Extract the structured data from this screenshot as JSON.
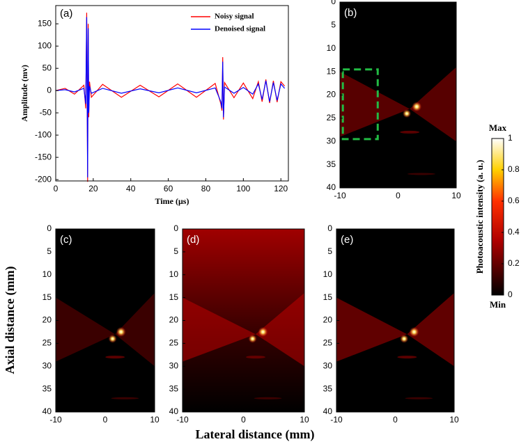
{
  "axial_label": "Axial distance (mm)",
  "lateral_label": "Lateral distance (mm)",
  "chart_data": [
    {
      "type": "line",
      "panel_label": "(a)",
      "xlabel": "Time (μs)",
      "ylabel": "Amplitude (mv)",
      "xlim": [
        0,
        124
      ],
      "xticks": [
        0,
        20,
        40,
        60,
        80,
        100,
        120
      ],
      "ylim": [
        -203,
        191
      ],
      "yticks": [
        -200,
        -150,
        -100,
        -50,
        0,
        50,
        100,
        150
      ],
      "legend": "top-right",
      "x": [
        0,
        5,
        10,
        15,
        16,
        16.5,
        17,
        17.3,
        17.6,
        18,
        19,
        25,
        35,
        45,
        55,
        65,
        75,
        85,
        88,
        88.6,
        89,
        89.4,
        90,
        95,
        100,
        105,
        108,
        110,
        112,
        114,
        116,
        118,
        120,
        122
      ],
      "series": [
        {
          "name": "Noisy signal",
          "color": "#ff0000",
          "values": [
            0,
            5,
            -8,
            12,
            -40,
            175,
            -205,
            150,
            -60,
            20,
            -15,
            14,
            -15,
            12,
            -14,
            15,
            -15,
            16,
            -30,
            -45,
            75,
            -65,
            18,
            -16,
            17,
            -18,
            20,
            -25,
            25,
            -28,
            22,
            -26,
            20,
            10
          ]
        },
        {
          "name": "Denoised signal",
          "color": "#0000ff",
          "values": [
            0,
            2,
            -3,
            5,
            -30,
            165,
            -195,
            140,
            -50,
            10,
            -6,
            5,
            -6,
            4,
            -5,
            6,
            -5,
            6,
            -25,
            -40,
            65,
            -60,
            8,
            -6,
            7,
            -8,
            15,
            -20,
            22,
            -25,
            18,
            -22,
            15,
            5
          ]
        }
      ]
    },
    {
      "type": "heatmap",
      "panel_label": "(b)",
      "xlim": [
        -10,
        10
      ],
      "xticks": [
        -10,
        0,
        10
      ],
      "ylim": [
        40,
        0
      ],
      "yticks": [
        0,
        5,
        10,
        15,
        20,
        25,
        30,
        35,
        40
      ]
    },
    {
      "type": "heatmap",
      "panel_label": "(c)",
      "xlim": [
        -10,
        10
      ],
      "xticks": [
        -10,
        0,
        10
      ],
      "ylim": [
        40,
        0
      ],
      "yticks": [
        0,
        5,
        10,
        15,
        20,
        25,
        30,
        35,
        40
      ]
    },
    {
      "type": "heatmap",
      "panel_label": "(d)",
      "xlim": [
        -10,
        10
      ],
      "xticks": [
        -10,
        0,
        10
      ],
      "ylim": [
        40,
        0
      ],
      "yticks": [
        0,
        5,
        10,
        15,
        20,
        25,
        30,
        35,
        40
      ]
    },
    {
      "type": "heatmap",
      "panel_label": "(e)",
      "xlim": [
        -10,
        10
      ],
      "xticks": [
        -10,
        0,
        10
      ],
      "ylim": [
        40,
        0
      ],
      "yticks": [
        0,
        5,
        10,
        15,
        20,
        25,
        30,
        35,
        40
      ]
    },
    {
      "type": "colorbar",
      "label": "Photoacoustic intensity (a. u.)",
      "max_label": "Max",
      "min_label": "Min",
      "ylim": [
        0,
        1
      ],
      "yticks": [
        0,
        0.2,
        0.4,
        0.6,
        0.8,
        1
      ]
    }
  ]
}
